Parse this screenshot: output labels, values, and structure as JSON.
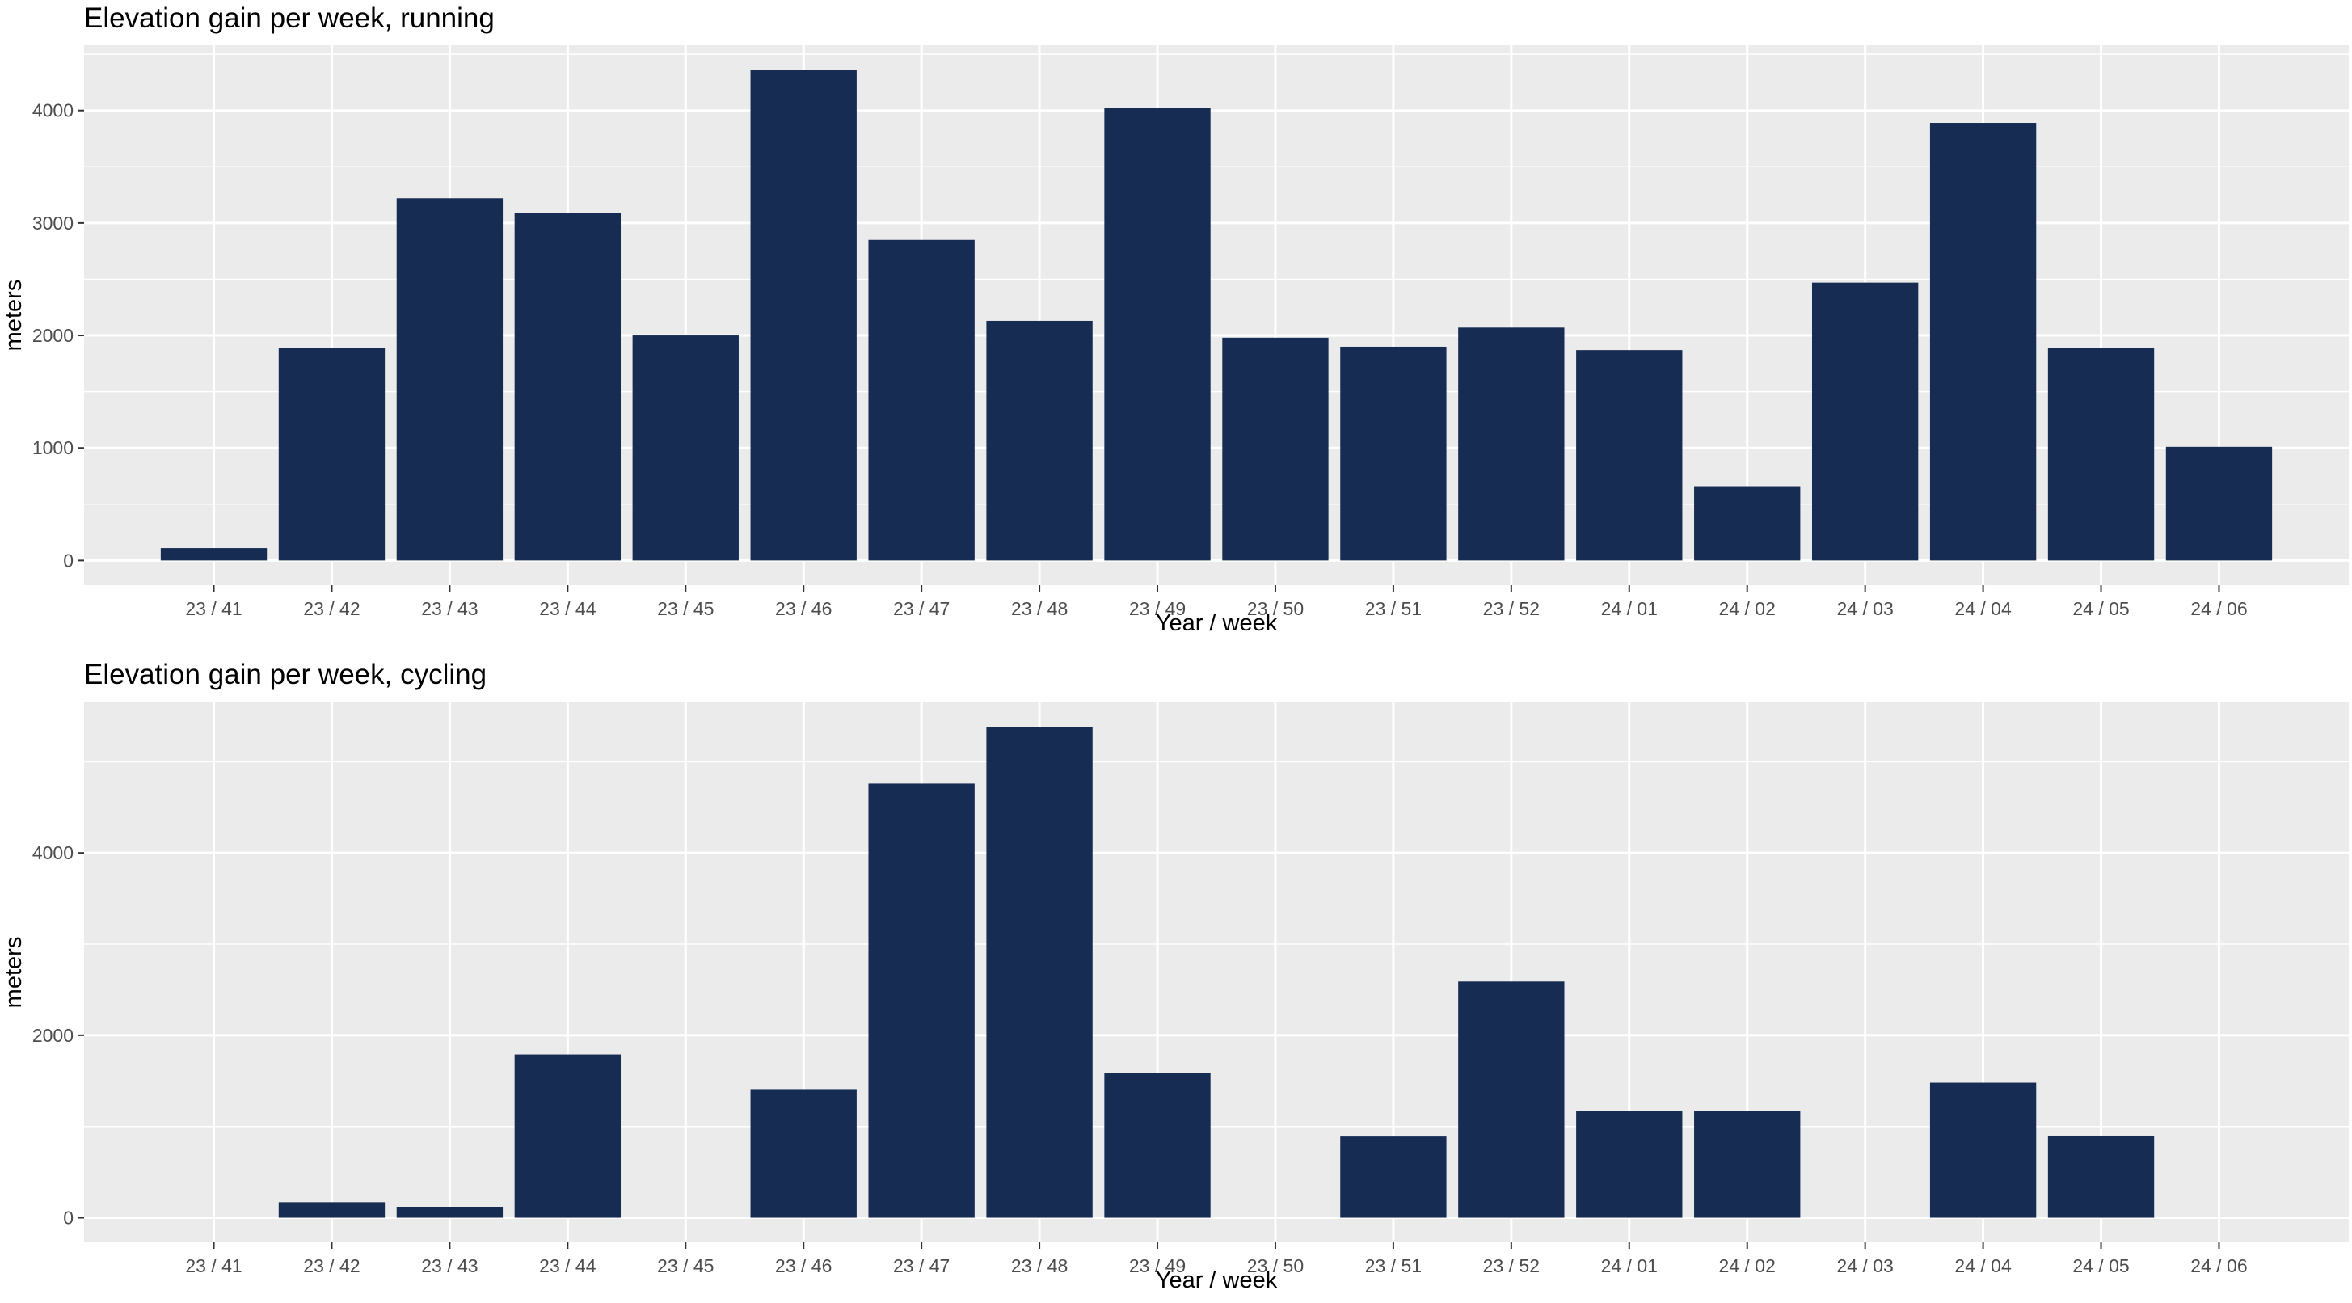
{
  "chart_data": [
    {
      "type": "bar",
      "title": "Elevation gain per week, running",
      "xlabel": "Year / week",
      "ylabel": "meters",
      "categories": [
        "23 / 41",
        "23 / 42",
        "23 / 43",
        "23 / 44",
        "23 / 45",
        "23 / 46",
        "23 / 47",
        "23 / 48",
        "23 / 49",
        "23 / 50",
        "23 / 51",
        "23 / 52",
        "24 / 01",
        "24 / 02",
        "24 / 03",
        "24 / 04",
        "24 / 05",
        "24 / 06"
      ],
      "values": [
        110,
        1890,
        3220,
        3090,
        2000,
        4360,
        2850,
        2130,
        4020,
        1980,
        1900,
        2070,
        1870,
        660,
        2470,
        3890,
        1890,
        1010
      ],
      "ylim": [
        -220,
        4580
      ],
      "yticks": [
        0,
        1000,
        2000,
        3000,
        4000
      ],
      "ytick_labels": [
        "0",
        "1000",
        "2000",
        "3000",
        "4000"
      ],
      "grid": true,
      "bar_color": "#172c53",
      "panel_background": "#ebebeb"
    },
    {
      "type": "bar",
      "title": "Elevation gain per week, cycling",
      "xlabel": "Year / week",
      "ylabel": "meters",
      "categories": [
        "23 / 41",
        "23 / 42",
        "23 / 43",
        "23 / 44",
        "23 / 45",
        "23 / 46",
        "23 / 47",
        "23 / 48",
        "23 / 49",
        "23 / 50",
        "23 / 51",
        "23 / 52",
        "24 / 01",
        "24 / 02",
        "24 / 03",
        "24 / 04",
        "24 / 05",
        "24 / 06"
      ],
      "values": [
        0,
        170,
        120,
        1790,
        0,
        1410,
        4760,
        5380,
        1590,
        0,
        890,
        2590,
        1170,
        1170,
        0,
        1480,
        900,
        0
      ],
      "ylim": [
        -270,
        5650
      ],
      "yticks": [
        0,
        2000,
        4000
      ],
      "ytick_labels": [
        "0",
        "2000",
        "4000"
      ],
      "grid": true,
      "bar_color": "#172c53",
      "panel_background": "#ebebeb"
    }
  ]
}
